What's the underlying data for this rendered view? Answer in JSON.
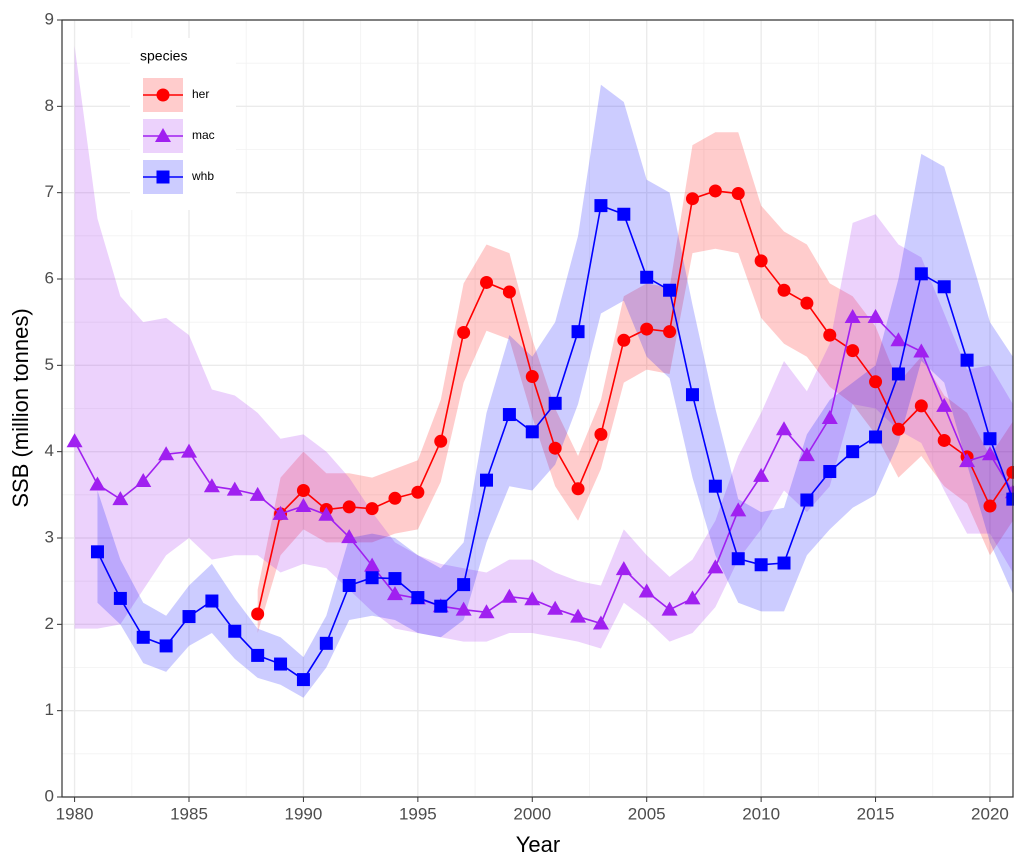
{
  "chart_data": {
    "type": "line_ribbon",
    "x_label": "Year",
    "y_label": "SSB (million tonnes)",
    "legend_title": "species",
    "legend_position": "top-left",
    "xlim": [
      1979.45,
      2021.05
    ],
    "xticks": [
      1980,
      1985,
      1990,
      1995,
      2000,
      2005,
      2010,
      2015,
      2020
    ],
    "ylim": [
      0,
      9
    ],
    "yticks": [
      0,
      1,
      2,
      3,
      4,
      5,
      6,
      7,
      8,
      9
    ],
    "grid": true,
    "minor_grid": true,
    "ribbon_opacity": 0.2,
    "series": [
      {
        "name": "her",
        "color": "#ff0000",
        "marker": "circle",
        "x": [
          1988,
          1989,
          1990,
          1991,
          1992,
          1993,
          1994,
          1995,
          1996,
          1997,
          1998,
          1999,
          2000,
          2001,
          2002,
          2003,
          2004,
          2005,
          2006,
          2007,
          2008,
          2009,
          2010,
          2011,
          2012,
          2013,
          2014,
          2015,
          2016,
          2017,
          2018,
          2019,
          2020,
          2021
        ],
        "values": [
          2.12,
          3.28,
          3.55,
          3.33,
          3.36,
          3.34,
          3.46,
          3.53,
          4.12,
          5.38,
          5.96,
          5.85,
          4.87,
          4.04,
          3.57,
          4.2,
          5.29,
          5.42,
          5.39,
          6.93,
          7.02,
          6.99,
          6.21,
          5.87,
          5.72,
          5.35,
          5.17,
          4.81,
          4.26,
          4.53,
          4.13,
          3.94,
          3.37,
          3.76
        ],
        "lower": [
          1.9,
          2.8,
          3.1,
          2.95,
          2.95,
          2.95,
          3.05,
          3.1,
          3.65,
          4.8,
          5.4,
          5.3,
          4.4,
          3.6,
          3.2,
          3.8,
          4.8,
          4.95,
          4.9,
          6.3,
          6.35,
          6.3,
          5.55,
          5.25,
          5.1,
          4.75,
          4.55,
          4.2,
          3.7,
          3.95,
          3.6,
          3.4,
          2.8,
          3.2
        ],
        "upper": [
          2.4,
          3.7,
          4.0,
          3.75,
          3.75,
          3.7,
          3.8,
          3.9,
          4.6,
          5.95,
          6.4,
          6.3,
          5.3,
          4.5,
          3.95,
          4.6,
          5.8,
          5.95,
          5.9,
          7.55,
          7.7,
          7.7,
          6.85,
          6.55,
          6.4,
          5.95,
          5.8,
          5.45,
          4.8,
          5.1,
          4.65,
          4.45,
          3.95,
          4.35
        ]
      },
      {
        "name": "mac",
        "color": "#a020f0",
        "marker": "triangle",
        "x": [
          1980,
          1981,
          1982,
          1983,
          1984,
          1985,
          1986,
          1987,
          1988,
          1989,
          1990,
          1991,
          1992,
          1993,
          1994,
          1995,
          1996,
          1997,
          1998,
          1999,
          2000,
          2001,
          2002,
          2003,
          2004,
          2005,
          2006,
          2007,
          2008,
          2009,
          2010,
          2011,
          2012,
          2013,
          2014,
          2015,
          2016,
          2017,
          2018,
          2019,
          2020,
          2021
        ],
        "values": [
          4.12,
          3.62,
          3.45,
          3.66,
          3.97,
          4.0,
          3.6,
          3.56,
          3.5,
          3.28,
          3.37,
          3.27,
          3.01,
          2.68,
          2.35,
          2.3,
          2.21,
          2.17,
          2.14,
          2.32,
          2.29,
          2.18,
          2.09,
          2.01,
          2.64,
          2.38,
          2.17,
          2.3,
          2.66,
          3.32,
          3.72,
          4.26,
          3.96,
          4.39,
          5.56,
          5.56,
          5.29,
          5.16,
          4.53,
          3.89,
          3.97,
          3.53
        ],
        "lower": [
          1.95,
          1.95,
          2.0,
          2.4,
          2.8,
          3.0,
          2.75,
          2.8,
          2.8,
          2.6,
          2.7,
          2.65,
          2.4,
          2.15,
          1.95,
          1.9,
          1.85,
          1.8,
          1.8,
          1.9,
          1.9,
          1.85,
          1.8,
          1.72,
          2.25,
          2.05,
          1.8,
          1.9,
          2.2,
          2.75,
          3.1,
          3.55,
          3.3,
          3.6,
          4.55,
          4.5,
          4.25,
          4.1,
          3.55,
          3.05,
          3.05,
          2.6
        ],
        "upper": [
          8.7,
          6.7,
          5.8,
          5.5,
          5.55,
          5.35,
          4.72,
          4.65,
          4.45,
          4.15,
          4.2,
          4.0,
          3.7,
          3.3,
          2.95,
          2.8,
          2.7,
          2.65,
          2.6,
          2.75,
          2.75,
          2.6,
          2.5,
          2.45,
          3.1,
          2.8,
          2.55,
          2.75,
          3.2,
          3.95,
          4.45,
          5.05,
          4.7,
          5.25,
          6.65,
          6.75,
          6.4,
          6.25,
          5.6,
          4.95,
          5.0,
          4.55
        ]
      },
      {
        "name": "whb",
        "color": "#0000ff",
        "marker": "square",
        "x": [
          1981,
          1982,
          1983,
          1984,
          1985,
          1986,
          1987,
          1988,
          1989,
          1990,
          1991,
          1992,
          1993,
          1994,
          1995,
          1996,
          1997,
          1998,
          1999,
          2000,
          2001,
          2002,
          2003,
          2004,
          2005,
          2006,
          2007,
          2008,
          2009,
          2010,
          2011,
          2012,
          2013,
          2014,
          2015,
          2016,
          2017,
          2018,
          2019,
          2020,
          2021
        ],
        "values": [
          2.84,
          2.3,
          1.85,
          1.75,
          2.09,
          2.27,
          1.92,
          1.64,
          1.54,
          1.36,
          1.78,
          2.45,
          2.54,
          2.53,
          2.31,
          2.21,
          2.46,
          3.67,
          4.43,
          4.23,
          4.56,
          5.39,
          6.85,
          6.75,
          6.02,
          5.87,
          4.66,
          3.6,
          2.76,
          2.69,
          2.71,
          3.44,
          3.77,
          4.0,
          4.17,
          4.9,
          6.06,
          5.91,
          5.06,
          4.15,
          3.45
        ],
        "lower": [
          2.25,
          2.0,
          1.55,
          1.45,
          1.75,
          1.9,
          1.6,
          1.38,
          1.3,
          1.15,
          1.5,
          2.05,
          2.1,
          2.05,
          1.9,
          1.85,
          2.05,
          2.95,
          3.6,
          3.55,
          3.85,
          4.55,
          5.6,
          5.75,
          5.1,
          4.85,
          3.7,
          2.8,
          2.25,
          2.15,
          2.15,
          2.8,
          3.1,
          3.35,
          3.5,
          4.1,
          5.05,
          4.8,
          3.85,
          2.95,
          2.35
        ],
        "upper": [
          3.55,
          2.75,
          2.25,
          2.1,
          2.45,
          2.7,
          2.3,
          1.95,
          1.85,
          1.62,
          2.1,
          3.0,
          3.05,
          3.0,
          2.8,
          2.65,
          2.95,
          4.45,
          5.35,
          5.1,
          5.5,
          6.5,
          8.25,
          8.05,
          7.15,
          7.0,
          5.7,
          4.5,
          3.45,
          3.3,
          3.35,
          4.2,
          4.6,
          4.8,
          5.0,
          6.0,
          7.45,
          7.3,
          6.4,
          5.5,
          5.1
        ]
      }
    ]
  }
}
